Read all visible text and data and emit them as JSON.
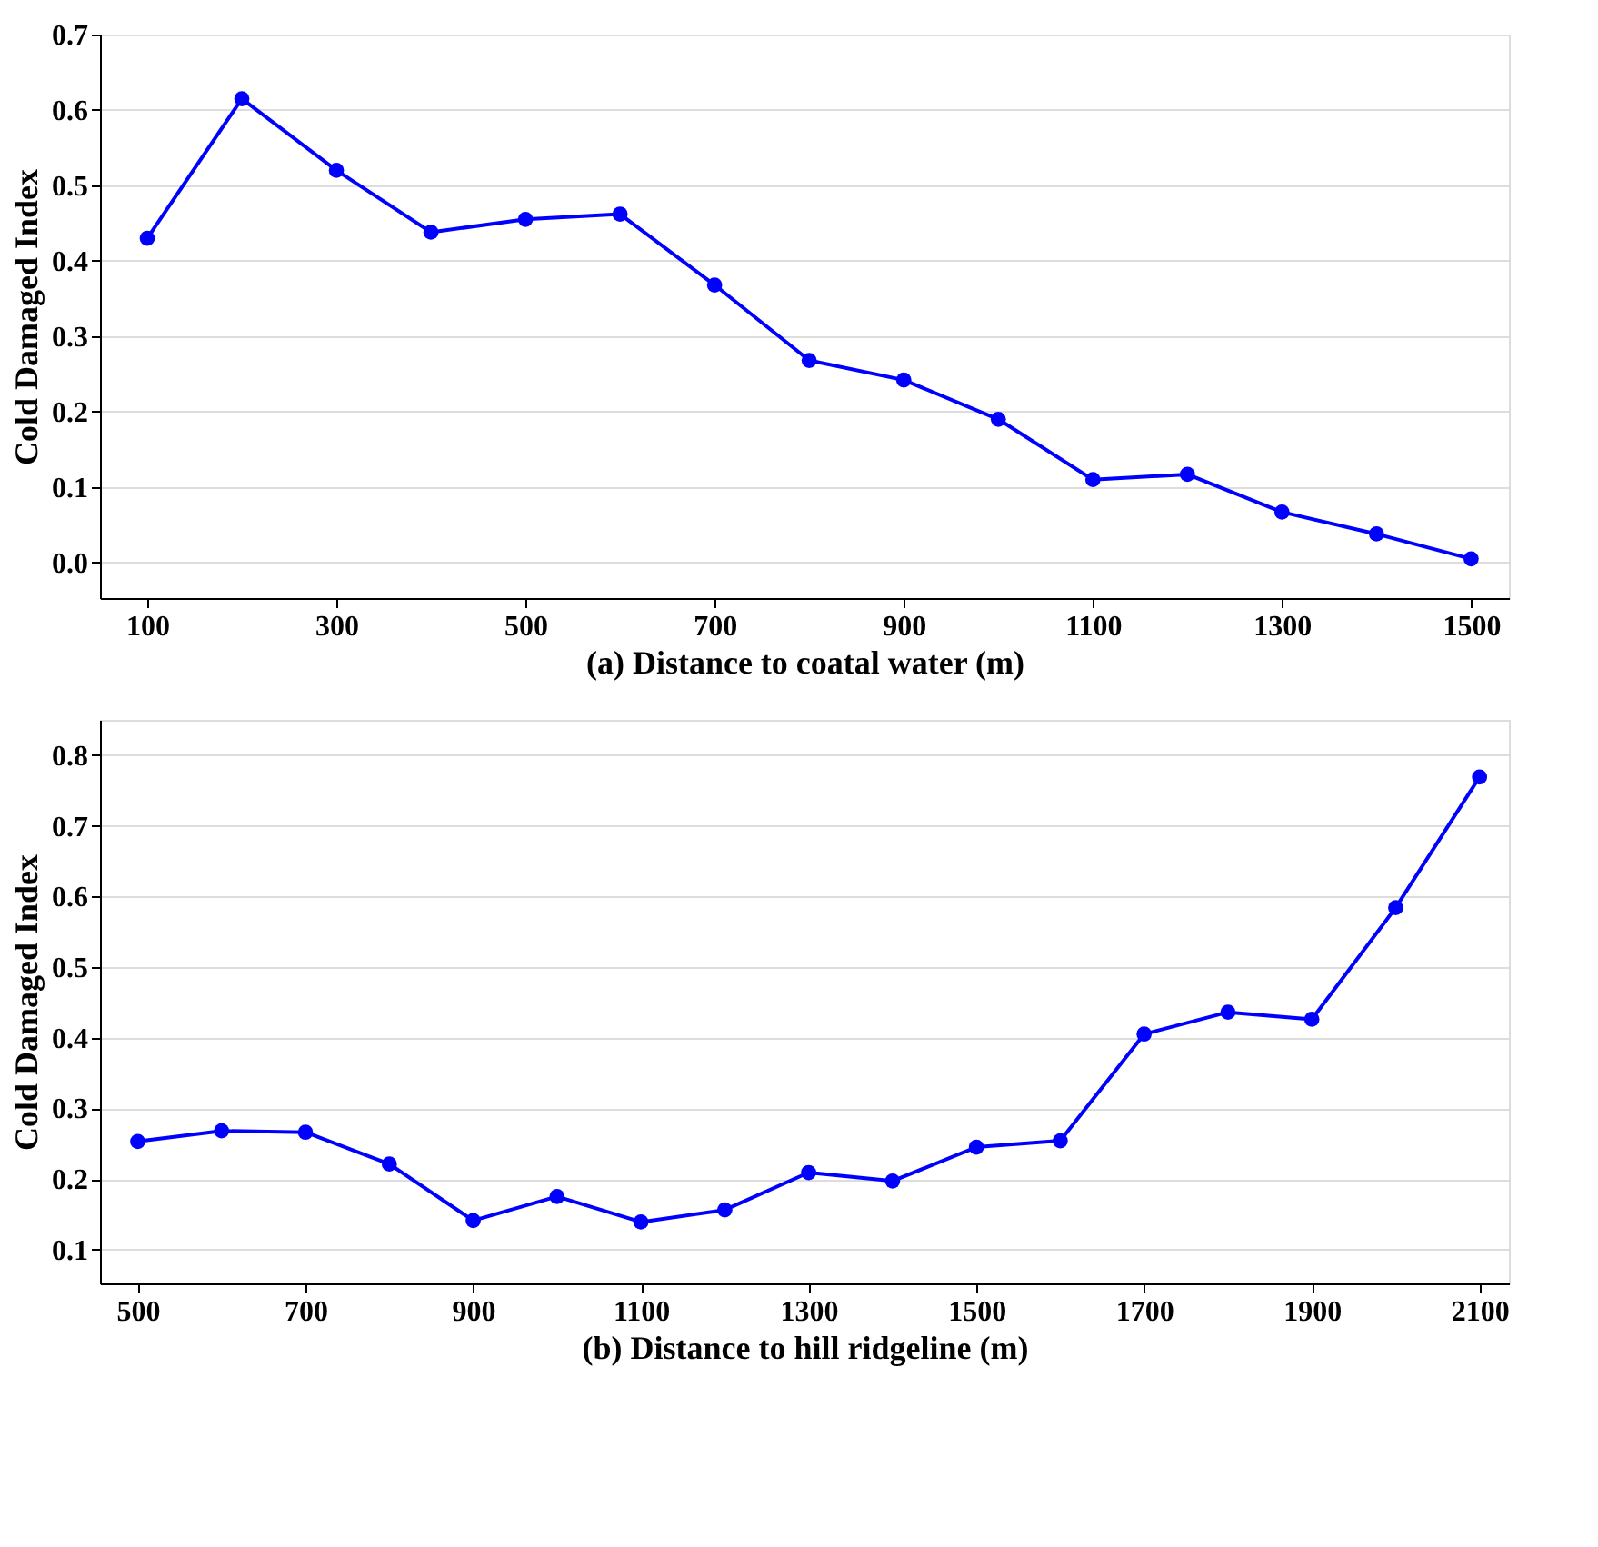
{
  "chart_data": [
    {
      "type": "line",
      "xlabel": "(a) Distance to coatal water (m)",
      "ylabel": "Cold Damaged Index",
      "x": [
        100,
        200,
        300,
        400,
        500,
        600,
        700,
        800,
        900,
        1000,
        1100,
        1200,
        1300,
        1400,
        1500
      ],
      "series": [
        {
          "color": "#0000ff",
          "values": [
            0.43,
            0.615,
            0.52,
            0.438,
            0.455,
            0.462,
            0.368,
            0.268,
            0.242,
            0.19,
            0.11,
            0.117,
            0.067,
            0.038,
            0.005
          ]
        }
      ],
      "xlim": [
        50,
        1540
      ],
      "xticks": [
        100,
        300,
        500,
        700,
        900,
        1100,
        1300,
        1500
      ],
      "ylim": [
        -0.047,
        0.7
      ],
      "yticks": [
        {
          "value": 0,
          "label": "0.0"
        },
        0.1,
        0.2,
        0.3,
        0.4,
        0.5,
        0.6,
        0.7
      ],
      "grid": "y",
      "marker": "circle",
      "line_style": "solid"
    },
    {
      "type": "line",
      "xlabel": "(b) Distance to hill ridgeline (m)",
      "ylabel": "Cold Damaged Index",
      "x": [
        500,
        600,
        700,
        800,
        900,
        1000,
        1100,
        1200,
        1300,
        1400,
        1500,
        1600,
        1700,
        1800,
        1900,
        2000,
        2100
      ],
      "series": [
        {
          "color": "#0000ff",
          "values": [
            0.253,
            0.268,
            0.266,
            0.221,
            0.141,
            0.175,
            0.139,
            0.156,
            0.209,
            0.197,
            0.245,
            0.254,
            0.405,
            0.436,
            0.426,
            0.584,
            0.769
          ]
        }
      ],
      "xlim": [
        455,
        2135
      ],
      "xticks": [
        500,
        700,
        900,
        1100,
        1300,
        1500,
        1700,
        1900,
        2100
      ],
      "ylim": [
        0.052,
        0.85
      ],
      "yticks": [
        0.1,
        0.2,
        0.3,
        0.4,
        0.5,
        0.6,
        0.7,
        0.8
      ],
      "grid": "y",
      "marker": "circle",
      "line_style": "solid"
    }
  ]
}
